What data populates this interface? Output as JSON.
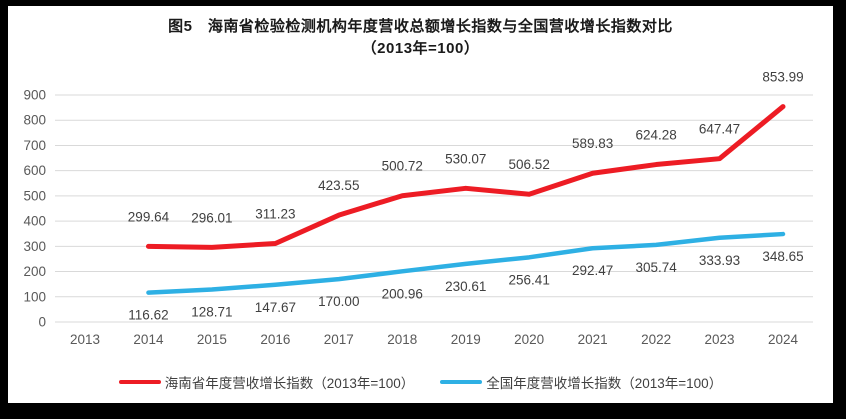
{
  "title": {
    "line1": "图5　海南省检验检测机构年度营收总额增长指数与全国营收增长指数对比",
    "line2": "（2013年=100）"
  },
  "chart_data": {
    "type": "line",
    "categories": [
      "2013",
      "2014",
      "2015",
      "2016",
      "2017",
      "2018",
      "2019",
      "2020",
      "2021",
      "2022",
      "2023",
      "2024"
    ],
    "series": [
      {
        "name": "海南省年度营收增长指数（2013年=100）",
        "color": "#ED1C24",
        "values": [
          null,
          299.64,
          296.01,
          311.23,
          423.55,
          500.72,
          530.07,
          506.52,
          589.83,
          624.28,
          647.47,
          853.99
        ],
        "label_position": "above"
      },
      {
        "name": "全国年度营收增长指数（2013年=100）",
        "color": "#2EB0E4",
        "values": [
          null,
          116.62,
          128.71,
          147.67,
          170.0,
          200.96,
          230.61,
          256.41,
          292.47,
          305.74,
          333.93,
          348.65
        ],
        "label_position": "below"
      }
    ],
    "xlabel": "",
    "ylabel": "",
    "ylim": [
      0,
      900
    ],
    "yticks": [
      0,
      100,
      200,
      300,
      400,
      500,
      600,
      700,
      800,
      900
    ],
    "grid": true,
    "legend_position": "bottom",
    "value_label_decimals": 2
  },
  "style_colors": {
    "grid_line": "#D9D9D9",
    "tick_text": "#595959",
    "data_label_text": "#404040",
    "frame_border": "#000000"
  }
}
